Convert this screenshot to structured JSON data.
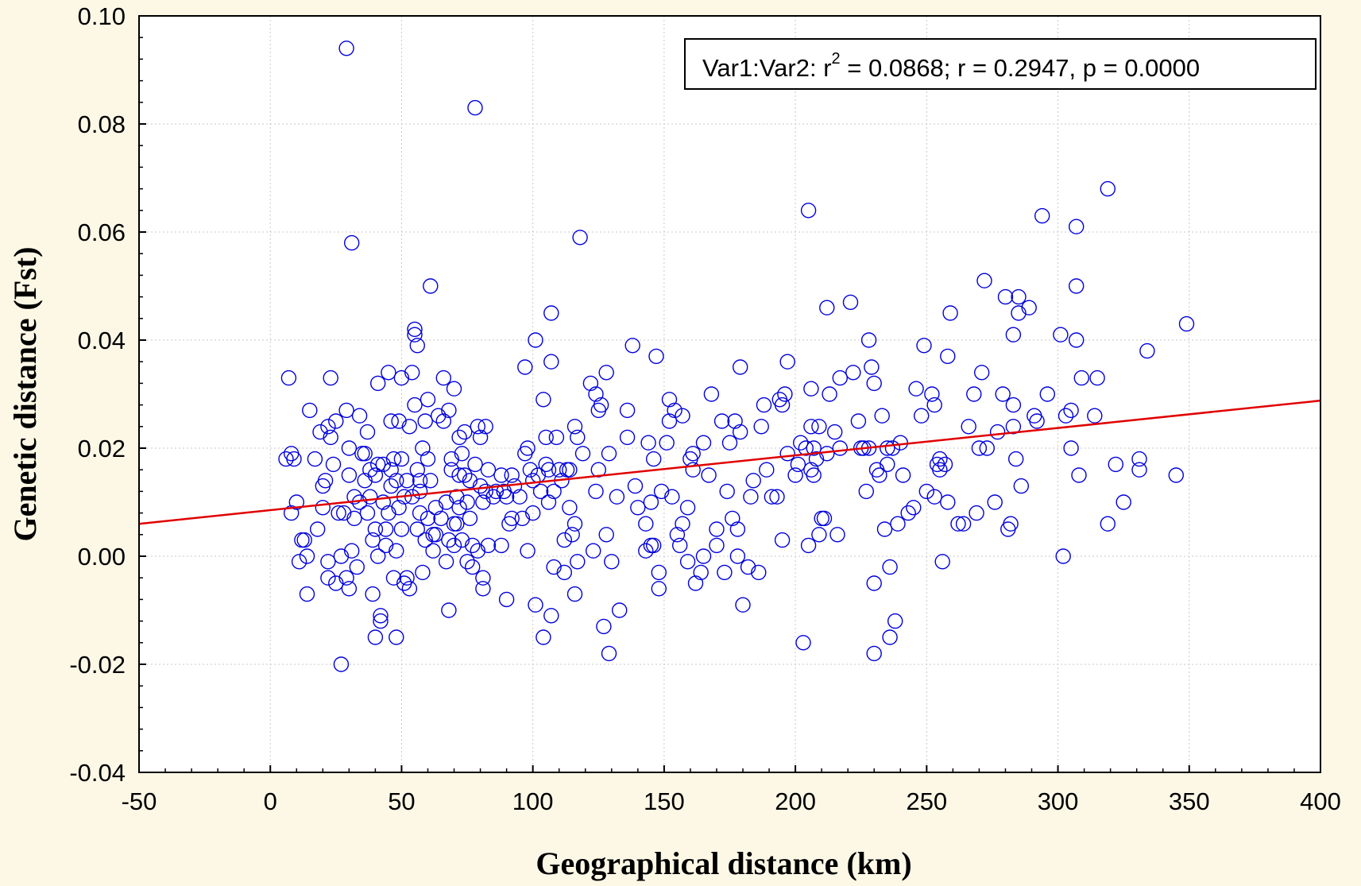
{
  "chart_data": {
    "type": "scatter",
    "title": "",
    "xlabel": "Geographical distance (km)",
    "ylabel": "Genetic distance (Fst)",
    "xlim": [
      -50,
      400
    ],
    "ylim": [
      -0.04,
      0.1
    ],
    "xticks": [
      "-50",
      "0",
      "50",
      "100",
      "150",
      "200",
      "250",
      "300",
      "350",
      "400"
    ],
    "yticks": [
      "-0.04",
      "-0.02",
      "0.00",
      "0.02",
      "0.04",
      "0.06",
      "0.08",
      "0.10"
    ],
    "grid": true,
    "annotation": {
      "prefix": "Var1:Var2:  r",
      "sup": "2",
      "suffix": " = 0.0868;  r = 0.2947, p = 0.0000"
    },
    "regression": {
      "x": [
        -50,
        400
      ],
      "y": [
        0.006,
        0.0288
      ]
    },
    "colors": {
      "points": "#0000dd",
      "line": "#e00000",
      "background": "#fdf8e6"
    },
    "points": [
      [
        7,
        0.033
      ],
      [
        8,
        0.008
      ],
      [
        6,
        0.018
      ],
      [
        9,
        0.018
      ],
      [
        10,
        0.01
      ],
      [
        8,
        0.019
      ],
      [
        11,
        -0.001
      ],
      [
        12,
        0.003
      ],
      [
        13,
        0.003
      ],
      [
        14,
        -0.007
      ],
      [
        14,
        0.0
      ],
      [
        15,
        0.027
      ],
      [
        17,
        0.018
      ],
      [
        18,
        0.005
      ],
      [
        19,
        0.023
      ],
      [
        20,
        0.013
      ],
      [
        20,
        0.009
      ],
      [
        21,
        0.014
      ],
      [
        22,
        0.024
      ],
      [
        22,
        -0.004
      ],
      [
        22,
        -0.001
      ],
      [
        23,
        0.033
      ],
      [
        23,
        0.022
      ],
      [
        24,
        0.017
      ],
      [
        25,
        0.025
      ],
      [
        25,
        -0.005
      ],
      [
        26,
        0.008
      ],
      [
        27,
        -0.02
      ],
      [
        27,
        0.0
      ],
      [
        28,
        0.008
      ],
      [
        29,
        0.094
      ],
      [
        29,
        -0.004
      ],
      [
        29,
        0.027
      ],
      [
        30,
        0.02
      ],
      [
        30,
        0.015
      ],
      [
        30,
        -0.006
      ],
      [
        31,
        0.058
      ],
      [
        31,
        0.001
      ],
      [
        32,
        0.011
      ],
      [
        32,
        0.007
      ],
      [
        33,
        -0.002
      ],
      [
        34,
        0.026
      ],
      [
        34,
        0.01
      ],
      [
        35,
        0.019
      ],
      [
        36,
        0.019
      ],
      [
        36,
        0.014
      ],
      [
        37,
        0.008
      ],
      [
        37,
        0.023
      ],
      [
        38,
        0.016
      ],
      [
        38,
        0.011
      ],
      [
        39,
        0.003
      ],
      [
        39,
        -0.007
      ],
      [
        40,
        -0.015
      ],
      [
        40,
        0.005
      ],
      [
        40,
        0.015
      ],
      [
        41,
        0.032
      ],
      [
        41,
        0.017
      ],
      [
        41,
        0.0
      ],
      [
        42,
        -0.012
      ],
      [
        42,
        -0.011
      ],
      [
        43,
        0.01
      ],
      [
        43,
        0.017
      ],
      [
        44,
        0.002
      ],
      [
        44,
        0.005
      ],
      [
        45,
        0.034
      ],
      [
        45,
        0.008
      ],
      [
        46,
        0.025
      ],
      [
        46,
        0.013
      ],
      [
        46,
        0.016
      ],
      [
        47,
        0.018
      ],
      [
        47,
        -0.004
      ],
      [
        48,
        -0.015
      ],
      [
        48,
        0.001
      ],
      [
        48,
        0.014
      ],
      [
        49,
        0.025
      ],
      [
        49,
        0.009
      ],
      [
        50,
        0.033
      ],
      [
        50,
        0.018
      ],
      [
        50,
        0.005
      ],
      [
        51,
        -0.005
      ],
      [
        51,
        0.011
      ],
      [
        52,
        0.014
      ],
      [
        52,
        -0.004
      ],
      [
        53,
        -0.006
      ],
      [
        53,
        0.024
      ],
      [
        54,
        0.034
      ],
      [
        54,
        0.011
      ],
      [
        55,
        0.042
      ],
      [
        55,
        0.041
      ],
      [
        55,
        0.028
      ],
      [
        56,
        0.039
      ],
      [
        56,
        0.016
      ],
      [
        56,
        0.005
      ],
      [
        57,
        0.014
      ],
      [
        57,
        0.012
      ],
      [
        57,
        0.008
      ],
      [
        58,
        0.02
      ],
      [
        58,
        -0.003
      ],
      [
        59,
        0.003
      ],
      [
        59,
        0.025
      ],
      [
        60,
        0.029
      ],
      [
        60,
        0.018
      ],
      [
        60,
        0.007
      ],
      [
        61,
        0.05
      ],
      [
        61,
        0.014
      ],
      [
        62,
        0.004
      ],
      [
        62,
        0.001
      ],
      [
        63,
        0.009
      ],
      [
        63,
        0.004
      ],
      [
        64,
        0.026
      ],
      [
        65,
        0.007
      ],
      [
        66,
        0.033
      ],
      [
        66,
        0.025
      ],
      [
        67,
        -0.001
      ],
      [
        67,
        0.01
      ],
      [
        68,
        0.027
      ],
      [
        68,
        -0.01
      ],
      [
        68,
        0.003
      ],
      [
        69,
        0.018
      ],
      [
        69,
        0.016
      ],
      [
        70,
        0.031
      ],
      [
        70,
        0.006
      ],
      [
        70,
        0.002
      ],
      [
        71,
        0.011
      ],
      [
        71,
        0.006
      ],
      [
        72,
        0.015
      ],
      [
        72,
        0.022
      ],
      [
        72,
        0.009
      ],
      [
        73,
        0.019
      ],
      [
        73,
        0.003
      ],
      [
        74,
        0.015
      ],
      [
        74,
        0.023
      ],
      [
        75,
        0.01
      ],
      [
        75,
        -0.001
      ],
      [
        76,
        0.014
      ],
      [
        76,
        0.007
      ],
      [
        77,
        -0.002
      ],
      [
        77,
        0.002
      ],
      [
        78,
        0.083
      ],
      [
        78,
        0.017
      ],
      [
        79,
        0.024
      ],
      [
        79,
        0.001
      ],
      [
        80,
        0.022
      ],
      [
        80,
        0.013
      ],
      [
        81,
        0.01
      ],
      [
        81,
        -0.004
      ],
      [
        81,
        -0.006
      ],
      [
        82,
        0.024
      ],
      [
        82,
        0.012
      ],
      [
        83,
        0.002
      ],
      [
        83,
        0.016
      ],
      [
        85,
        0.011
      ],
      [
        86,
        0.012
      ],
      [
        88,
        0.002
      ],
      [
        88,
        0.015
      ],
      [
        89,
        0.012
      ],
      [
        90,
        -0.008
      ],
      [
        90,
        0.011
      ],
      [
        91,
        0.006
      ],
      [
        92,
        0.007
      ],
      [
        92,
        0.015
      ],
      [
        93,
        0.013
      ],
      [
        95,
        0.011
      ],
      [
        96,
        0.007
      ],
      [
        97,
        0.035
      ],
      [
        97,
        0.019
      ],
      [
        98,
        0.001
      ],
      [
        98,
        0.02
      ],
      [
        99,
        0.016
      ],
      [
        100,
        0.014
      ],
      [
        100,
        0.008
      ],
      [
        101,
        0.04
      ],
      [
        101,
        -0.009
      ],
      [
        102,
        0.015
      ],
      [
        103,
        0.012
      ],
      [
        104,
        0.029
      ],
      [
        104,
        -0.015
      ],
      [
        105,
        0.017
      ],
      [
        105,
        0.022
      ],
      [
        106,
        0.016
      ],
      [
        106,
        0.01
      ],
      [
        107,
        0.045
      ],
      [
        107,
        0.036
      ],
      [
        107,
        -0.011
      ],
      [
        108,
        0.012
      ],
      [
        108,
        -0.002
      ],
      [
        109,
        0.022
      ],
      [
        110,
        0.016
      ],
      [
        111,
        0.014
      ],
      [
        112,
        0.003
      ],
      [
        112,
        -0.003
      ],
      [
        113,
        0.016
      ],
      [
        114,
        0.009
      ],
      [
        114,
        0.016
      ],
      [
        115,
        0.004
      ],
      [
        116,
        0.024
      ],
      [
        116,
        0.006
      ],
      [
        116,
        -0.007
      ],
      [
        117,
        0.022
      ],
      [
        117,
        -0.001
      ],
      [
        118,
        0.059
      ],
      [
        119,
        0.019
      ],
      [
        122,
        0.032
      ],
      [
        123,
        0.001
      ],
      [
        124,
        0.012
      ],
      [
        124,
        0.03
      ],
      [
        125,
        0.027
      ],
      [
        125,
        0.016
      ],
      [
        126,
        0.028
      ],
      [
        127,
        -0.013
      ],
      [
        128,
        0.004
      ],
      [
        128,
        0.034
      ],
      [
        129,
        0.019
      ],
      [
        129,
        -0.018
      ],
      [
        130,
        -0.001
      ],
      [
        132,
        0.011
      ],
      [
        133,
        -0.01
      ],
      [
        136,
        0.027
      ],
      [
        136,
        0.022
      ],
      [
        138,
        0.039
      ],
      [
        139,
        0.013
      ],
      [
        140,
        0.009
      ],
      [
        143,
        0.001
      ],
      [
        143,
        0.006
      ],
      [
        144,
        0.021
      ],
      [
        145,
        0.002
      ],
      [
        145,
        0.01
      ],
      [
        146,
        0.018
      ],
      [
        146,
        0.002
      ],
      [
        147,
        0.037
      ],
      [
        148,
        -0.003
      ],
      [
        148,
        -0.006
      ],
      [
        149,
        0.012
      ],
      [
        151,
        0.021
      ],
      [
        152,
        0.025
      ],
      [
        152,
        0.029
      ],
      [
        153,
        0.011
      ],
      [
        154,
        0.027
      ],
      [
        155,
        0.004
      ],
      [
        156,
        0.002
      ],
      [
        157,
        0.006
      ],
      [
        157,
        0.026
      ],
      [
        159,
        -0.001
      ],
      [
        159,
        0.009
      ],
      [
        160,
        0.018
      ],
      [
        161,
        0.019
      ],
      [
        161,
        0.016
      ],
      [
        162,
        -0.005
      ],
      [
        164,
        -0.003
      ],
      [
        165,
        0.021
      ],
      [
        165,
        0.0
      ],
      [
        167,
        0.015
      ],
      [
        168,
        0.03
      ],
      [
        170,
        0.005
      ],
      [
        170,
        0.002
      ],
      [
        172,
        0.025
      ],
      [
        173,
        -0.003
      ],
      [
        174,
        0.012
      ],
      [
        175,
        0.021
      ],
      [
        176,
        0.007
      ],
      [
        177,
        0.025
      ],
      [
        178,
        0.005
      ],
      [
        178,
        0.0
      ],
      [
        179,
        0.035
      ],
      [
        179,
        0.023
      ],
      [
        180,
        -0.009
      ],
      [
        182,
        -0.002
      ],
      [
        183,
        0.011
      ],
      [
        184,
        0.014
      ],
      [
        186,
        -0.003
      ],
      [
        187,
        0.024
      ],
      [
        188,
        0.028
      ],
      [
        189,
        0.016
      ],
      [
        191,
        0.011
      ],
      [
        193,
        0.011
      ],
      [
        194,
        0.029
      ],
      [
        195,
        0.003
      ],
      [
        195,
        0.028
      ],
      [
        196,
        0.03
      ],
      [
        197,
        0.019
      ],
      [
        197,
        0.036
      ],
      [
        200,
        0.015
      ],
      [
        201,
        0.017
      ],
      [
        202,
        0.021
      ],
      [
        203,
        -0.016
      ],
      [
        204,
        0.02
      ],
      [
        205,
        0.064
      ],
      [
        205,
        0.002
      ],
      [
        206,
        0.024
      ],
      [
        206,
        0.031
      ],
      [
        206,
        0.016
      ],
      [
        207,
        0.02
      ],
      [
        207,
        0.015
      ],
      [
        208,
        0.018
      ],
      [
        209,
        0.024
      ],
      [
        209,
        0.004
      ],
      [
        210,
        0.007
      ],
      [
        211,
        0.007
      ],
      [
        212,
        0.046
      ],
      [
        212,
        0.019
      ],
      [
        213,
        0.03
      ],
      [
        215,
        0.023
      ],
      [
        216,
        0.004
      ],
      [
        217,
        0.033
      ],
      [
        217,
        0.02
      ],
      [
        221,
        0.047
      ],
      [
        222,
        0.034
      ],
      [
        224,
        0.025
      ],
      [
        225,
        0.02
      ],
      [
        226,
        0.02
      ],
      [
        227,
        0.012
      ],
      [
        228,
        0.02
      ],
      [
        228,
        0.04
      ],
      [
        229,
        0.035
      ],
      [
        230,
        0.032
      ],
      [
        230,
        -0.005
      ],
      [
        230,
        -0.018
      ],
      [
        231,
        0.016
      ],
      [
        232,
        0.015
      ],
      [
        233,
        0.026
      ],
      [
        234,
        0.005
      ],
      [
        235,
        0.02
      ],
      [
        235,
        0.017
      ],
      [
        236,
        -0.015
      ],
      [
        236,
        -0.002
      ],
      [
        237,
        0.02
      ],
      [
        238,
        -0.012
      ],
      [
        239,
        0.006
      ],
      [
        240,
        0.021
      ],
      [
        241,
        0.015
      ],
      [
        243,
        0.008
      ],
      [
        245,
        0.009
      ],
      [
        246,
        0.031
      ],
      [
        248,
        0.026
      ],
      [
        249,
        0.039
      ],
      [
        250,
        0.012
      ],
      [
        252,
        0.03
      ],
      [
        253,
        0.028
      ],
      [
        253,
        0.011
      ],
      [
        254,
        0.017
      ],
      [
        255,
        0.018
      ],
      [
        255,
        0.016
      ],
      [
        256,
        -0.001
      ],
      [
        257,
        0.017
      ],
      [
        258,
        0.01
      ],
      [
        258,
        0.037
      ],
      [
        259,
        0.045
      ],
      [
        262,
        0.006
      ],
      [
        264,
        0.006
      ],
      [
        266,
        0.024
      ],
      [
        268,
        0.03
      ],
      [
        269,
        0.008
      ],
      [
        270,
        0.02
      ],
      [
        271,
        0.034
      ],
      [
        272,
        0.051
      ],
      [
        273,
        0.02
      ],
      [
        276,
        0.01
      ],
      [
        277,
        0.023
      ],
      [
        279,
        0.03
      ],
      [
        280,
        0.048
      ],
      [
        281,
        0.005
      ],
      [
        282,
        0.006
      ],
      [
        283,
        0.024
      ],
      [
        283,
        0.028
      ],
      [
        283,
        0.041
      ],
      [
        284,
        0.018
      ],
      [
        285,
        0.045
      ],
      [
        285,
        0.048
      ],
      [
        286,
        0.013
      ],
      [
        289,
        0.046
      ],
      [
        291,
        0.026
      ],
      [
        292,
        0.025
      ],
      [
        294,
        0.063
      ],
      [
        296,
        0.03
      ],
      [
        301,
        0.041
      ],
      [
        302,
        0.0
      ],
      [
        303,
        0.026
      ],
      [
        305,
        0.027
      ],
      [
        305,
        0.02
      ],
      [
        307,
        0.04
      ],
      [
        307,
        0.05
      ],
      [
        307,
        0.061
      ],
      [
        308,
        0.015
      ],
      [
        309,
        0.033
      ],
      [
        314,
        0.026
      ],
      [
        315,
        0.033
      ],
      [
        319,
        0.068
      ],
      [
        319,
        0.006
      ],
      [
        322,
        0.017
      ],
      [
        325,
        0.01
      ],
      [
        331,
        0.016
      ],
      [
        331,
        0.018
      ],
      [
        334,
        0.038
      ],
      [
        345,
        0.015
      ],
      [
        349,
        0.043
      ]
    ]
  }
}
